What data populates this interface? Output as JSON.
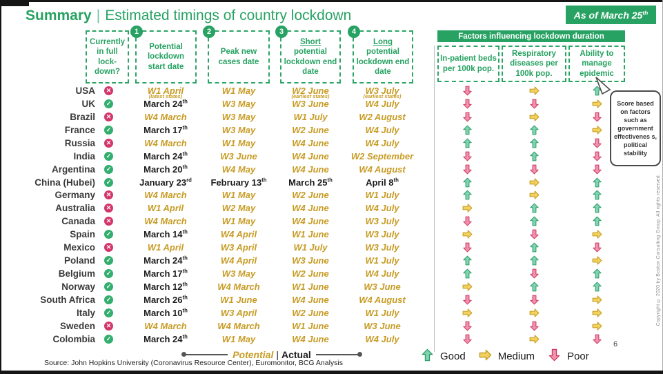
{
  "title": {
    "heading": "Summary",
    "separator": "|",
    "subtitle": "Estimated timings of country lockdown"
  },
  "badge": {
    "text": "As of March 25",
    "sup": "th"
  },
  "columns": [
    {
      "label": "Currently in full lock-down?"
    },
    {
      "num": "1",
      "label": "Potential lockdown start date"
    },
    {
      "num": "2",
      "label": "Peak new cases date"
    },
    {
      "num": "3",
      "word": "Short",
      "rest": "potential lockdown end date"
    },
    {
      "num": "4",
      "word": "Long",
      "rest": "potential lockdown end date"
    }
  ],
  "factors": {
    "header": "Factors influencing lockdown duration",
    "columns": [
      "In-patient beds per 100k pop.",
      "Respiratory diseases per 100k pop.",
      "Ability to manage epidemic"
    ]
  },
  "callout": "Score based on factors such as government effectivenes s, political stability",
  "icons": {
    "check": "✓",
    "cross": "✕"
  },
  "rows": [
    {
      "country": "USA",
      "inlock": false,
      "start": {
        "v": "W1 April",
        "type": "p",
        "note": "(latest states)"
      },
      "peak": {
        "v": "W1 May",
        "type": "p"
      },
      "short": {
        "v": "W2 June",
        "type": "p",
        "note": "(earliest states)"
      },
      "long": {
        "v": "W3 July",
        "type": "p",
        "note": "(earliest states)"
      },
      "factors": [
        "poor",
        "medium",
        "good"
      ]
    },
    {
      "country": "UK",
      "inlock": true,
      "start": {
        "v": "March 24",
        "sup": "th",
        "type": "a"
      },
      "peak": {
        "v": "W3 May",
        "type": "p"
      },
      "short": {
        "v": "W3 June",
        "type": "p"
      },
      "long": {
        "v": "W4 July",
        "type": "p"
      },
      "factors": [
        "poor",
        "poor",
        "medium"
      ]
    },
    {
      "country": "Brazil",
      "inlock": false,
      "start": {
        "v": "W4 March",
        "type": "p"
      },
      "peak": {
        "v": "W3 May",
        "type": "p"
      },
      "short": {
        "v": "W1 July",
        "type": "p"
      },
      "long": {
        "v": "W2 August",
        "type": "p"
      },
      "factors": [
        "poor",
        "medium",
        "poor"
      ]
    },
    {
      "country": "France",
      "inlock": true,
      "start": {
        "v": "March 17",
        "sup": "th",
        "type": "a"
      },
      "peak": {
        "v": "W3 May",
        "type": "p"
      },
      "short": {
        "v": "W2 June",
        "type": "p"
      },
      "long": {
        "v": "W4 July",
        "type": "p"
      },
      "factors": [
        "good",
        "good",
        "medium"
      ]
    },
    {
      "country": "Russia",
      "inlock": false,
      "start": {
        "v": "W4 March",
        "type": "p"
      },
      "peak": {
        "v": "W1 May",
        "type": "p"
      },
      "short": {
        "v": "W4 June",
        "type": "p"
      },
      "long": {
        "v": "W4 July",
        "type": "p"
      },
      "factors": [
        "good",
        "good",
        "poor"
      ]
    },
    {
      "country": "India",
      "inlock": true,
      "start": {
        "v": "March 24",
        "sup": "th",
        "type": "a"
      },
      "peak": {
        "v": "W3 June",
        "type": "p"
      },
      "short": {
        "v": "W4 June",
        "type": "p"
      },
      "long": {
        "v": "W2 September",
        "type": "p"
      },
      "factors": [
        "poor",
        "good",
        "poor"
      ]
    },
    {
      "country": "Argentina",
      "inlock": true,
      "start": {
        "v": "March 20",
        "sup": "th",
        "type": "a"
      },
      "peak": {
        "v": "W4 May",
        "type": "p"
      },
      "short": {
        "v": "W4 June",
        "type": "p"
      },
      "long": {
        "v": "W4 August",
        "type": "p"
      },
      "factors": [
        "poor",
        "poor",
        "poor"
      ]
    },
    {
      "country": "China (Hubei)",
      "inlock": true,
      "start": {
        "v": "January 23",
        "sup": "rd",
        "type": "a"
      },
      "peak": {
        "v": "February 13",
        "sup": "th",
        "type": "a"
      },
      "short": {
        "v": "March 25",
        "sup": "th",
        "type": "a"
      },
      "long": {
        "v": "April 8",
        "sup": "th",
        "type": "a"
      },
      "factors": [
        "good",
        "medium",
        "good"
      ]
    },
    {
      "country": "Germany",
      "inlock": false,
      "start": {
        "v": "W4 March",
        "type": "p"
      },
      "peak": {
        "v": "W1 May",
        "type": "p"
      },
      "short": {
        "v": "W2 June",
        "type": "p"
      },
      "long": {
        "v": "W1 July",
        "type": "p"
      },
      "factors": [
        "good",
        "medium",
        "good"
      ]
    },
    {
      "country": "Australia",
      "inlock": false,
      "start": {
        "v": "W1 April",
        "type": "p"
      },
      "peak": {
        "v": "W2 May",
        "type": "p"
      },
      "short": {
        "v": "W4 June",
        "type": "p"
      },
      "long": {
        "v": "W4 July",
        "type": "p"
      },
      "factors": [
        "medium",
        "good",
        "good"
      ]
    },
    {
      "country": "Canada",
      "inlock": false,
      "start": {
        "v": "W4 March",
        "type": "p"
      },
      "peak": {
        "v": "W1 May",
        "type": "p"
      },
      "short": {
        "v": "W4 June",
        "type": "p"
      },
      "long": {
        "v": "W3 July",
        "type": "p"
      },
      "factors": [
        "poor",
        "good",
        "good"
      ]
    },
    {
      "country": "Spain",
      "inlock": true,
      "start": {
        "v": "March 14",
        "sup": "th",
        "type": "a"
      },
      "peak": {
        "v": "W4 April",
        "type": "p"
      },
      "short": {
        "v": "W1 June",
        "type": "p"
      },
      "long": {
        "v": "W3 July",
        "type": "p"
      },
      "factors": [
        "medium",
        "poor",
        "medium"
      ]
    },
    {
      "country": "Mexico",
      "inlock": false,
      "start": {
        "v": "W1 April",
        "type": "p"
      },
      "peak": {
        "v": "W3 April",
        "type": "p"
      },
      "short": {
        "v": "W1 July",
        "type": "p"
      },
      "long": {
        "v": "W3 July",
        "type": "p"
      },
      "factors": [
        "poor",
        "good",
        "poor"
      ]
    },
    {
      "country": "Poland",
      "inlock": true,
      "start": {
        "v": "March 24",
        "sup": "th",
        "type": "a"
      },
      "peak": {
        "v": "W4 April",
        "type": "p"
      },
      "short": {
        "v": "W3 June",
        "type": "p"
      },
      "long": {
        "v": "W1 July",
        "type": "p"
      },
      "factors": [
        "good",
        "good",
        "medium"
      ]
    },
    {
      "country": "Belgium",
      "inlock": true,
      "start": {
        "v": "March 17",
        "sup": "th",
        "type": "a"
      },
      "peak": {
        "v": "W3 May",
        "type": "p"
      },
      "short": {
        "v": "W2 June",
        "type": "p"
      },
      "long": {
        "v": "W4 July",
        "type": "p"
      },
      "factors": [
        "good",
        "poor",
        "good"
      ]
    },
    {
      "country": "Norway",
      "inlock": true,
      "start": {
        "v": "March 12",
        "sup": "th",
        "type": "a"
      },
      "peak": {
        "v": "W4 March",
        "type": "p"
      },
      "short": {
        "v": "W1 June",
        "type": "p"
      },
      "long": {
        "v": "W3 June",
        "type": "p"
      },
      "factors": [
        "medium",
        "good",
        "good"
      ]
    },
    {
      "country": "South Africa",
      "inlock": true,
      "start": {
        "v": "March 26",
        "sup": "th",
        "type": "a"
      },
      "peak": {
        "v": "W1 June",
        "type": "p"
      },
      "short": {
        "v": "W4 June",
        "type": "p"
      },
      "long": {
        "v": "W4 August",
        "type": "p"
      },
      "factors": [
        "poor",
        "poor",
        "medium"
      ]
    },
    {
      "country": "Italy",
      "inlock": true,
      "start": {
        "v": "March 10",
        "sup": "th",
        "type": "a"
      },
      "peak": {
        "v": "W3 April",
        "type": "p"
      },
      "short": {
        "v": "W2 June",
        "type": "p"
      },
      "long": {
        "v": "W1 July",
        "type": "p"
      },
      "factors": [
        "medium",
        "medium",
        "medium"
      ]
    },
    {
      "country": "Sweden",
      "inlock": false,
      "start": {
        "v": "W4 March",
        "type": "p"
      },
      "peak": {
        "v": "W4 March",
        "type": "p"
      },
      "short": {
        "v": "W1 June",
        "type": "p"
      },
      "long": {
        "v": "W3 June",
        "type": "p"
      },
      "factors": [
        "poor",
        "poor",
        "medium"
      ]
    },
    {
      "country": "Colombia",
      "inlock": true,
      "start": {
        "v": "March 24",
        "sup": "th",
        "type": "a"
      },
      "peak": {
        "v": "W1 May",
        "type": "p"
      },
      "short": {
        "v": "W4 June",
        "type": "p"
      },
      "long": {
        "v": "W4 July",
        "type": "p"
      },
      "factors": [
        "poor",
        "medium",
        "poor"
      ]
    }
  ],
  "potential_actual": {
    "potential": "Potential",
    "separator": "|",
    "actual": "Actual"
  },
  "arrow_legend": {
    "good": "Good",
    "medium": "Medium",
    "poor": "Poor"
  },
  "source": "Source: John Hopkins University (Coronavirus Resource Center), Euromonitor, BCG Analysis",
  "page_number": "6",
  "copyright": "Copyright © 2020 by Boston Consulting Group. All rights reserved.",
  "colors": {
    "brand_green": "#27A262",
    "potential_gold": "#C79B23",
    "poor_red": "#D4356A",
    "arrow_good_fill": "#82D4B0",
    "arrow_good_stroke": "#2F9E6C",
    "arrow_medium_fill": "#F3D15E",
    "arrow_medium_stroke": "#C29A1D",
    "arrow_poor_fill": "#F093AC",
    "arrow_poor_stroke": "#CE3A66"
  }
}
